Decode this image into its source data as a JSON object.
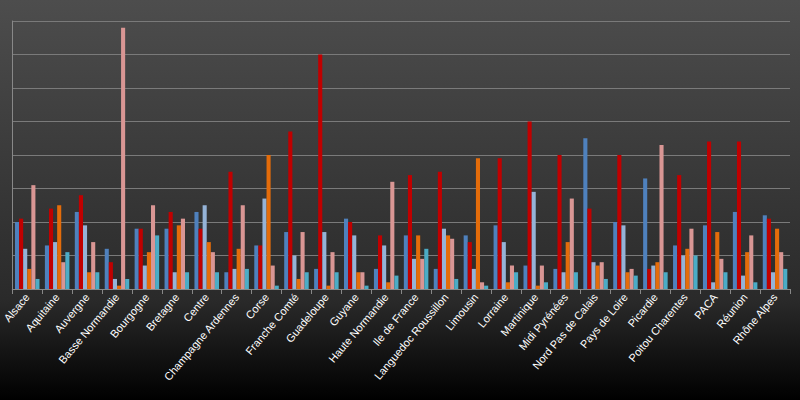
{
  "chart_data": {
    "type": "bar",
    "categories": [
      "Alsace",
      "Aquitaine",
      "Auvergne",
      "Basse Normandie",
      "Bourgogne",
      "Bretagne",
      "Centre",
      "Champagne Ardennes",
      "Corse",
      "Franche Comté",
      "Guadeloupe",
      "Guyane",
      "Haute Normandie",
      "Ile de France",
      "Languedoc Roussillon",
      "Limousin",
      "Lorraine",
      "Martinique",
      "Midi Pyrénées",
      "Nord Pas de Calais",
      "Pays de Loire",
      "Picardie",
      "Poitou Charentes",
      "PACA",
      "Réunion",
      "Rhône Alpes"
    ],
    "series": [
      {
        "color": "#4f81bd",
        "values": [
          2.0,
          1.3,
          2.3,
          1.2,
          1.8,
          1.8,
          2.3,
          0.5,
          1.3,
          1.7,
          0.6,
          2.1,
          0.6,
          1.6,
          0.6,
          1.6,
          1.9,
          0.7,
          0.6,
          4.5,
          2.0,
          3.3,
          1.3,
          1.9,
          2.3,
          2.2
        ]
      },
      {
        "color": "#c00000",
        "values": [
          2.1,
          2.4,
          2.8,
          0.8,
          1.8,
          2.3,
          1.8,
          3.5,
          1.3,
          4.7,
          7.0,
          2.0,
          1.6,
          3.4,
          3.5,
          1.4,
          3.9,
          5.0,
          4.0,
          2.4,
          4.0,
          0.6,
          3.4,
          4.4,
          4.4,
          2.1
        ]
      },
      {
        "color": "#95b3d7",
        "values": [
          1.2,
          1.4,
          1.9,
          0.3,
          0.7,
          0.5,
          2.5,
          0.6,
          2.7,
          1.0,
          1.7,
          1.6,
          1.3,
          0.9,
          1.8,
          0.6,
          1.4,
          2.9,
          0.5,
          0.8,
          1.9,
          0.7,
          1.0,
          0.2,
          0.4,
          0.5
        ]
      },
      {
        "color": "#e46c0a",
        "values": [
          0.6,
          2.5,
          0.5,
          0.1,
          1.1,
          1.9,
          1.4,
          1.2,
          4.0,
          0.3,
          0.1,
          0.5,
          0.2,
          1.6,
          1.6,
          3.9,
          0.2,
          0.1,
          1.4,
          0.7,
          0.5,
          0.8,
          1.2,
          1.7,
          1.1,
          1.8
        ]
      },
      {
        "color": "#d99694",
        "values": [
          3.1,
          0.8,
          1.4,
          7.8,
          2.5,
          2.1,
          1.1,
          2.5,
          0.7,
          1.7,
          1.1,
          0.5,
          3.2,
          0.9,
          1.5,
          0.2,
          0.7,
          0.7,
          2.7,
          0.8,
          0.6,
          4.3,
          1.8,
          0.9,
          1.6,
          1.1
        ]
      },
      {
        "color": "#4bacc6",
        "values": [
          0.3,
          1.1,
          0.5,
          0.3,
          1.6,
          0.5,
          0.5,
          0.6,
          0.1,
          0.5,
          0.5,
          0.1,
          0.4,
          1.2,
          0.3,
          0.1,
          0.5,
          0.2,
          0.5,
          0.3,
          0.4,
          0.5,
          1.0,
          0.5,
          0.2,
          0.6
        ]
      }
    ],
    "ylim": [
      0,
      8
    ],
    "yticks": [
      0,
      1,
      2,
      3,
      4,
      5,
      6,
      7,
      8
    ],
    "grid": true,
    "tick_labels": "x"
  }
}
